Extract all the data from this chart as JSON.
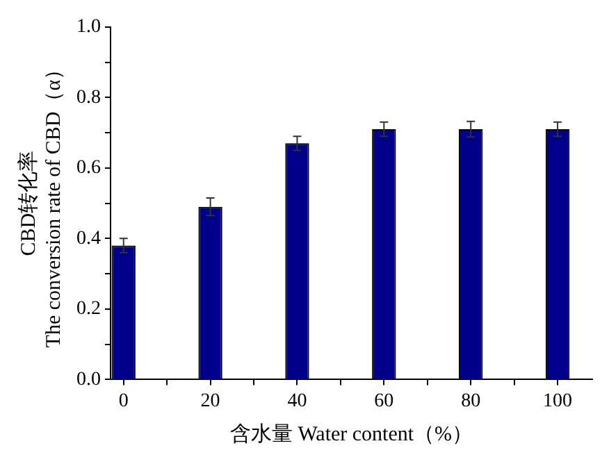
{
  "chart_data": {
    "type": "bar",
    "xlabel": "含水量 Water content（%）",
    "ylabel": "CBD转化率\nThe conversion rate of CBD（α）",
    "x": [
      0,
      20,
      40,
      60,
      80,
      100
    ],
    "values": [
      0.38,
      0.49,
      0.67,
      0.71,
      0.71,
      0.71
    ],
    "errors": [
      0.02,
      0.025,
      0.02,
      0.02,
      0.022,
      0.02
    ],
    "color": "#00008b",
    "xlim": [
      -3,
      108
    ],
    "xticks": [
      0,
      {
        "value": 10,
        "label": null
      },
      20,
      {
        "value": 30,
        "label": null
      },
      40,
      {
        "value": 50,
        "label": null
      },
      60,
      {
        "value": 70,
        "label": null
      },
      80,
      {
        "value": 90,
        "label": null
      },
      100
    ],
    "ylim": [
      0,
      1.0
    ],
    "yticks": [
      {
        "value": 0,
        "label": "0.0"
      },
      {
        "value": 0.1,
        "label": null
      },
      {
        "value": 0.2,
        "label": "0.2"
      },
      {
        "value": 0.3,
        "label": null
      },
      {
        "value": 0.4,
        "label": "0.4"
      },
      {
        "value": 0.5,
        "label": null
      },
      {
        "value": 0.6,
        "label": "0.6"
      },
      {
        "value": 0.7,
        "label": null
      },
      {
        "value": 0.8,
        "label": "0.8"
      },
      {
        "value": 0.9,
        "label": null
      },
      {
        "value": 1.0,
        "label": "1.0"
      }
    ],
    "grid": false,
    "legend": false
  }
}
